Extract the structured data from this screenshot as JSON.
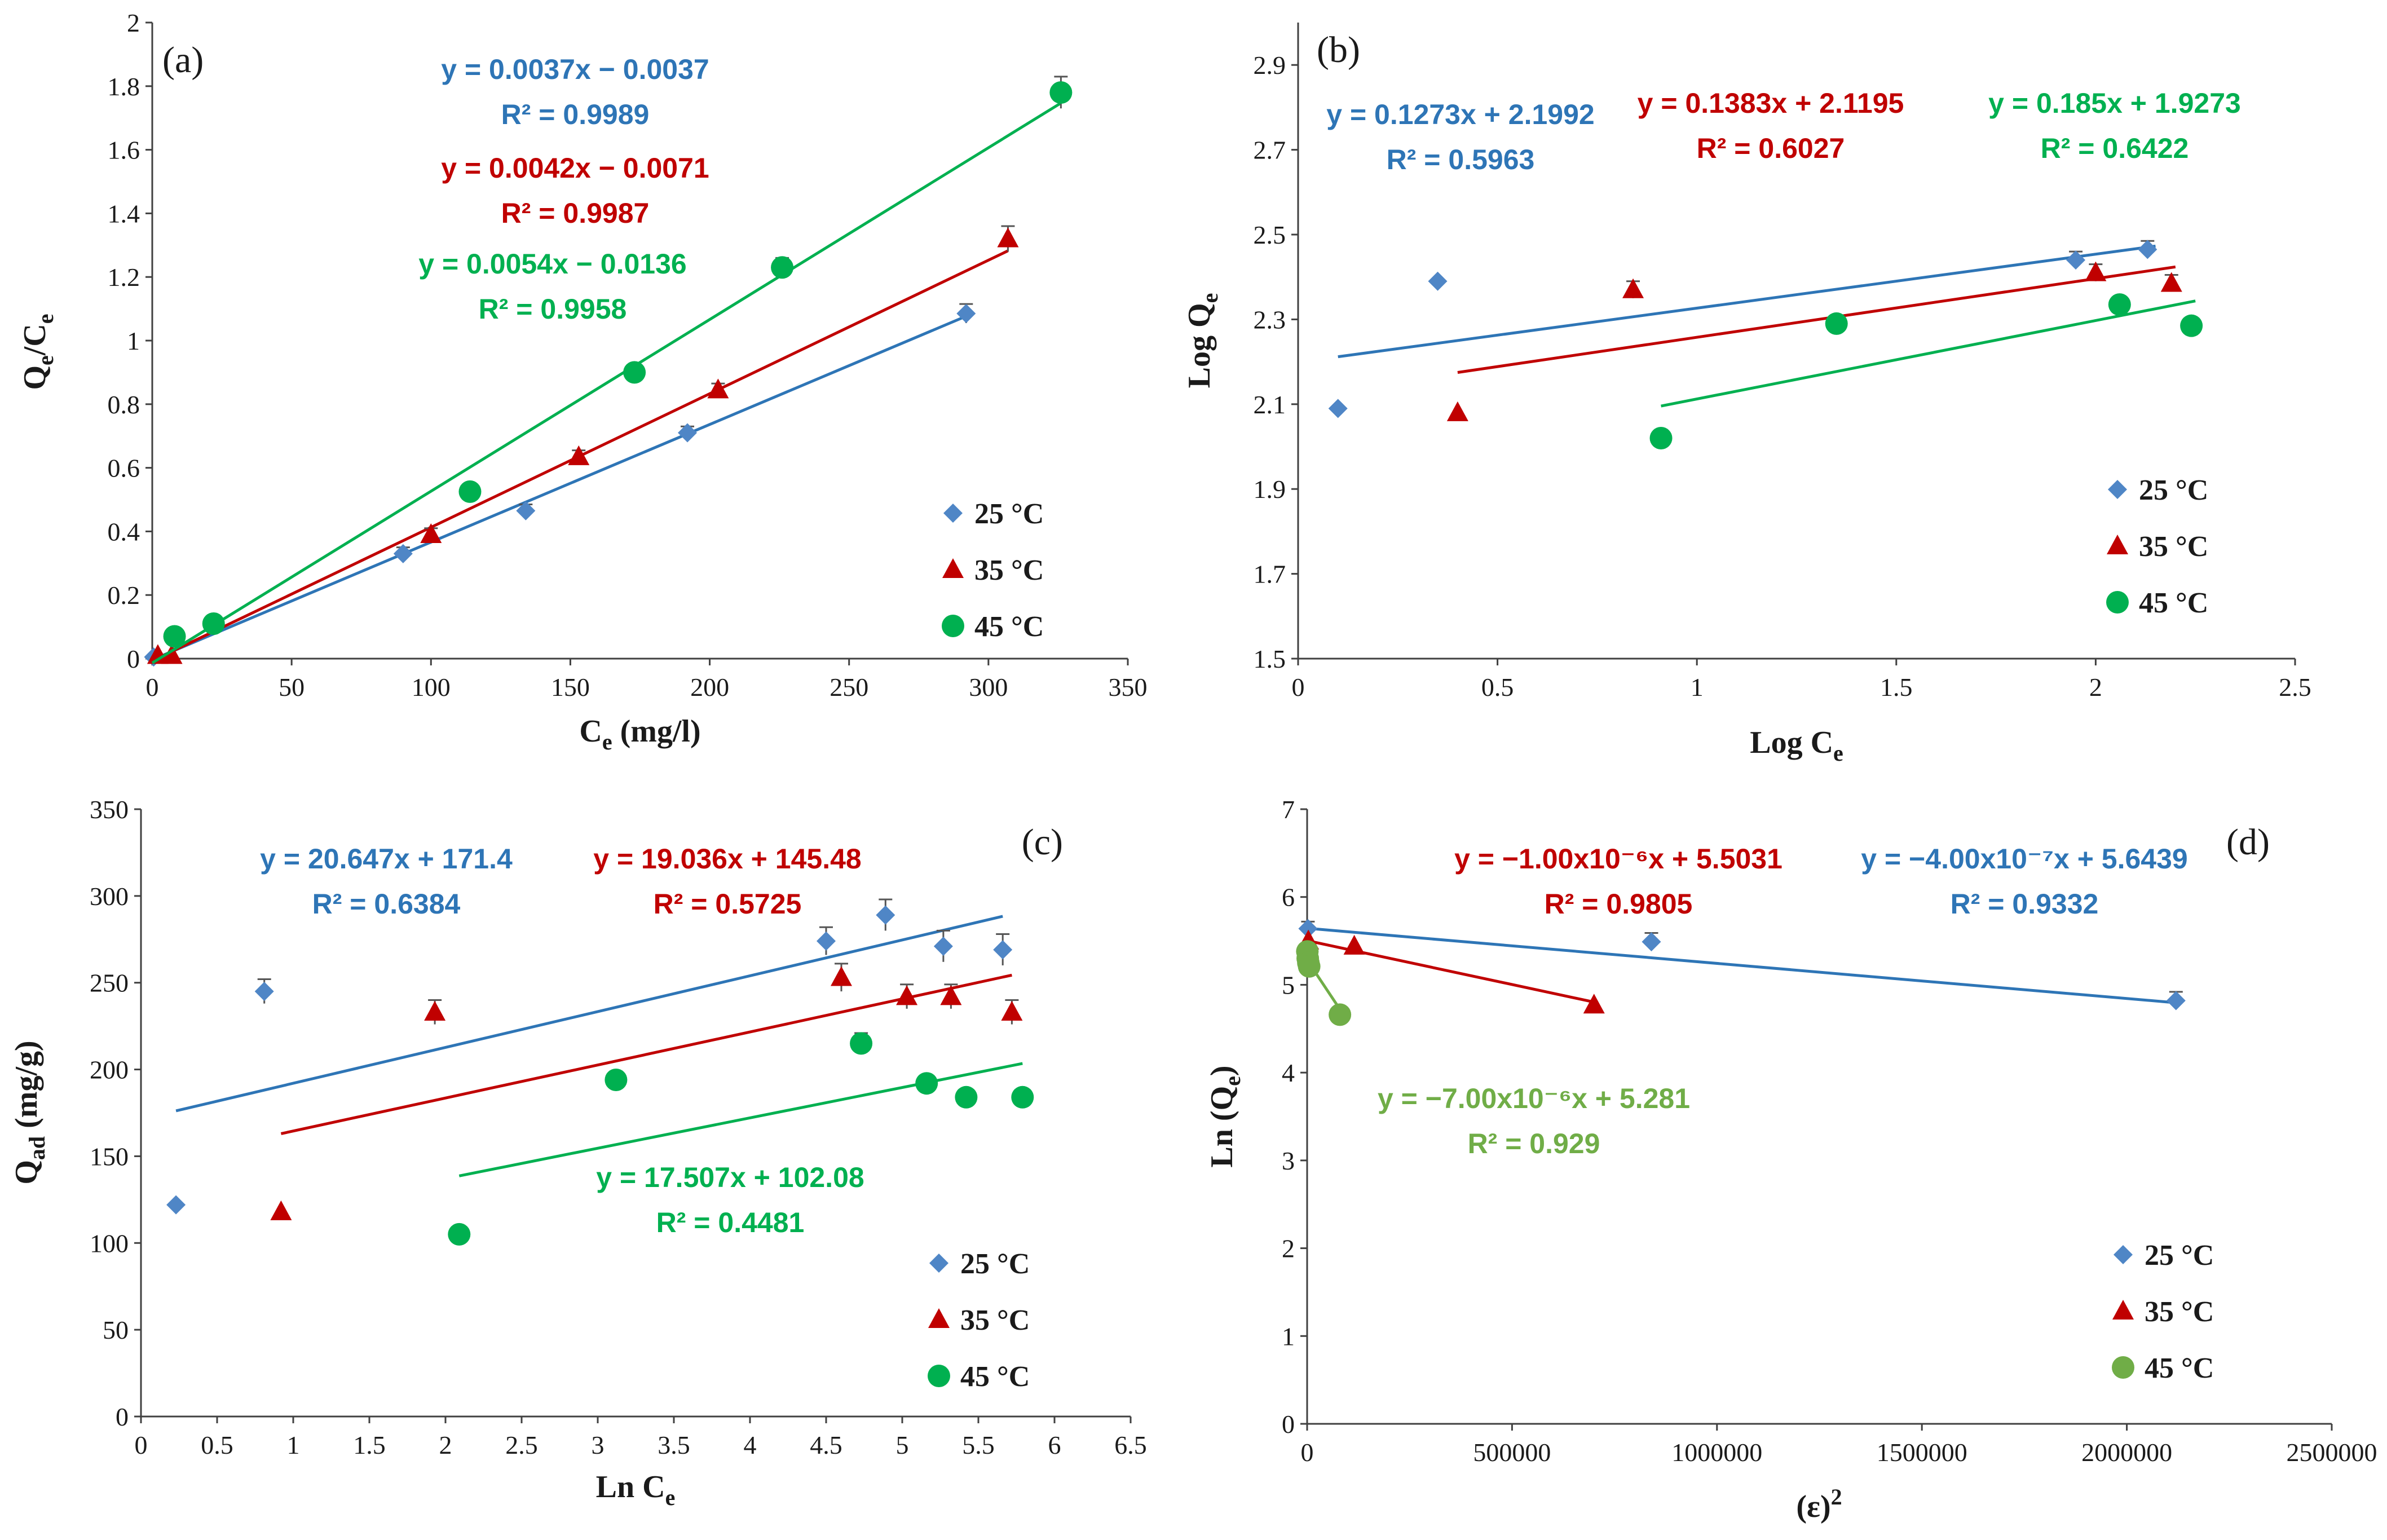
{
  "colors": {
    "c25": "#4F86C6",
    "c35": "#C00000",
    "c45": "#00B050",
    "c45d": "#70AD47",
    "line25": "#2E75B6",
    "axis": "#404040",
    "text": "#1a1a1a"
  },
  "legend_labels": [
    "25 °C",
    "35 °C",
    "45 °C"
  ],
  "chart_data": [
    {
      "id": "a",
      "type": "scatter",
      "panel_label": "(a)",
      "xlabel": "C",
      "xlabel_sub": "e",
      "xlabel_unit": " (mg/l)",
      "ylabel": "Q",
      "ylabel_sub1": "e",
      "ylabel_mid": "/C",
      "ylabel_sub2": "e",
      "xlim": [
        0,
        350
      ],
      "ylim": [
        0,
        2
      ],
      "xticks": [
        0,
        50,
        100,
        150,
        200,
        250,
        300,
        350
      ],
      "yticks": [
        0,
        0.2,
        0.4,
        0.6,
        0.8,
        1,
        1.2,
        1.4,
        1.6,
        1.8,
        2
      ],
      "series": [
        {
          "name": "25 °C",
          "marker": "diamond",
          "x": [
            0.5,
            90,
            134,
            192,
            292
          ],
          "y": [
            0.005,
            0.33,
            0.465,
            0.71,
            1.085
          ],
          "err": [
            0,
            0.02,
            0.02,
            0.02,
            0.03
          ],
          "fit_x": [
            0,
            292
          ]
        },
        {
          "name": "35 °C",
          "marker": "triangle",
          "x": [
            2,
            7,
            100,
            153,
            203,
            307
          ],
          "y": [
            0.01,
            0.01,
            0.39,
            0.635,
            0.845,
            1.32
          ],
          "err": [
            0,
            0,
            0.02,
            0.02,
            0.02,
            0.04
          ],
          "fit_x": [
            0,
            307
          ]
        },
        {
          "name": "45 °C",
          "marker": "circle",
          "x": [
            8,
            22,
            114,
            173,
            226,
            326
          ],
          "y": [
            0.07,
            0.11,
            0.525,
            0.9,
            1.23,
            1.78
          ],
          "err": [
            0,
            0,
            0,
            0,
            0.03,
            0.05
          ],
          "fit_x": [
            0,
            326
          ]
        }
      ],
      "fits": [
        {
          "slope": 0.0037,
          "intercept": -0.0037,
          "equation": "y = 0.0037x − 0.0037",
          "r2": "R² = 0.9989"
        },
        {
          "slope": 0.0042,
          "intercept": -0.0071,
          "equation": "y = 0.0042x − 0.0071",
          "r2": "R² = 0.9987"
        },
        {
          "slope": 0.0054,
          "intercept": -0.0136,
          "equation": "y = 0.0054x − 0.0136",
          "r2": "R² = 0.9958"
        }
      ]
    },
    {
      "id": "b",
      "type": "scatter",
      "panel_label": "(b)",
      "xlabel": "Log C",
      "xlabel_sub": "e",
      "xlabel_unit": "",
      "ylabel": "Log Q",
      "ylabel_sub1": "e",
      "ylabel_mid": "",
      "ylabel_sub2": "",
      "xlim": [
        0,
        2.5
      ],
      "ylim": [
        1.5,
        3.0
      ],
      "xticks": [
        0,
        0.5,
        1,
        1.5,
        2,
        2.5
      ],
      "yticks": [
        1.5,
        1.7,
        1.9,
        2.1,
        2.3,
        2.5,
        2.7,
        2.9
      ],
      "series": [
        {
          "name": "25 °C",
          "marker": "diamond",
          "x": [
            0.1,
            0.35,
            1.95,
            2.13
          ],
          "y": [
            2.09,
            2.39,
            2.44,
            2.465
          ],
          "err": [
            0,
            0,
            0.02,
            0.02
          ],
          "fit_x": [
            0.1,
            2.15
          ]
        },
        {
          "name": "35 °C",
          "marker": "triangle",
          "x": [
            0.4,
            0.84,
            2.0,
            2.19
          ],
          "y": [
            2.08,
            2.37,
            2.41,
            2.385
          ],
          "err": [
            0,
            0.02,
            0.02,
            0.02
          ],
          "fit_x": [
            0.4,
            2.2
          ]
        },
        {
          "name": "45 °C",
          "marker": "circle",
          "x": [
            0.91,
            1.35,
            2.06,
            2.24
          ],
          "y": [
            2.02,
            2.29,
            2.335,
            2.285
          ],
          "err": [
            0,
            0,
            0,
            0
          ],
          "fit_x": [
            0.91,
            2.25
          ]
        }
      ],
      "fits": [
        {
          "slope": 0.1273,
          "intercept": 2.1992,
          "equation": "y = 0.1273x + 2.1992",
          "r2": "R² = 0.5963"
        },
        {
          "slope": 0.1383,
          "intercept": 2.1195,
          "equation": "y = 0.1383x + 2.1195",
          "r2": "R² = 0.6027"
        },
        {
          "slope": 0.185,
          "intercept": 1.9273,
          "equation": "y = 0.185x + 1.9273",
          "r2": "R² = 0.6422"
        }
      ]
    },
    {
      "id": "c",
      "type": "scatter",
      "panel_label": "(c)",
      "xlabel": "Ln C",
      "xlabel_sub": "e",
      "xlabel_unit": "",
      "ylabel": "Q",
      "ylabel_sub1": "ad",
      "ylabel_mid": " (mg/g)",
      "ylabel_sub2": "",
      "xlim": [
        0,
        6.5
      ],
      "ylim": [
        0,
        350
      ],
      "xticks": [
        0,
        0.5,
        1,
        1.5,
        2,
        2.5,
        3,
        3.5,
        4,
        4.5,
        5,
        5.5,
        6,
        6.5
      ],
      "yticks": [
        0,
        50,
        100,
        150,
        200,
        250,
        300,
        350
      ],
      "series": [
        {
          "name": "25 °C",
          "marker": "diamond",
          "x": [
            0.23,
            0.81,
            4.5,
            4.89,
            5.27,
            5.66
          ],
          "y": [
            122,
            245,
            274,
            289,
            271,
            269
          ],
          "err": [
            0,
            7,
            8,
            9,
            9,
            9
          ],
          "fit_x": [
            0.23,
            5.66
          ]
        },
        {
          "name": "35 °C",
          "marker": "triangle",
          "x": [
            0.92,
            1.93,
            4.6,
            5.03,
            5.32,
            5.72
          ],
          "y": [
            118,
            233,
            253,
            242,
            242,
            233
          ],
          "err": [
            0,
            7,
            8,
            7,
            7,
            7
          ],
          "fit_x": [
            0.92,
            5.72
          ]
        },
        {
          "name": "45 °C",
          "marker": "circle",
          "x": [
            2.09,
            3.12,
            4.73,
            5.16,
            5.42,
            5.79
          ],
          "y": [
            105,
            194,
            215,
            192,
            184,
            184
          ],
          "err": [
            0,
            0,
            6,
            0,
            0,
            0
          ],
          "fit_x": [
            2.09,
            5.79
          ]
        }
      ],
      "fits": [
        {
          "slope": 20.647,
          "intercept": 171.4,
          "equation": "y = 20.647x + 171.4",
          "r2": "R² = 0.6384"
        },
        {
          "slope": 19.036,
          "intercept": 145.48,
          "equation": "y = 19.036x + 145.48",
          "r2": "R² = 0.5725"
        },
        {
          "slope": 17.507,
          "intercept": 102.08,
          "equation": "y = 17.507x + 102.08",
          "r2": "R² = 0.4481"
        }
      ]
    },
    {
      "id": "d",
      "type": "scatter",
      "panel_label": "(d)",
      "xlabel": "(ε)",
      "xlabel_sub": "",
      "xlabel_sup": "2",
      "xlabel_unit": "",
      "ylabel": "Ln (Q",
      "ylabel_sub1": "e",
      "ylabel_mid": ")",
      "ylabel_sub2": "",
      "xlim": [
        0,
        2500000
      ],
      "ylim": [
        0,
        7
      ],
      "xticks": [
        0,
        500000,
        1000000,
        1500000,
        2000000,
        2500000
      ],
      "yticks": [
        0,
        1,
        2,
        3,
        4,
        5,
        6,
        7
      ],
      "series": [
        {
          "name": "25 °C",
          "marker": "diamond",
          "x": [
            2000,
            840000,
            2120000
          ],
          "y": [
            5.64,
            5.49,
            4.82
          ],
          "err": [
            0.08,
            0.1,
            0.1
          ],
          "fit_x": [
            0,
            2120000
          ]
        },
        {
          "name": "35 °C",
          "marker": "triangle",
          "x": [
            3000,
            115000,
            700000
          ],
          "y": [
            5.5,
            5.44,
            4.77
          ],
          "err": [
            0,
            0,
            0
          ],
          "fit_x": [
            0,
            700000
          ]
        },
        {
          "name": "45 °C",
          "marker": "circle",
          "x": [
            500,
            1500,
            3000,
            5000,
            80000
          ],
          "y": [
            5.38,
            5.3,
            5.25,
            5.21,
            4.66
          ],
          "err": [
            0,
            0,
            0,
            0,
            0
          ],
          "fit_x": [
            0,
            80000
          ]
        }
      ],
      "fits": [
        {
          "slope": -4e-07,
          "intercept": 5.6439,
          "equation": "y = −4.00x10⁻⁷x + 5.6439",
          "r2": "R² = 0.9332"
        },
        {
          "slope": -1e-06,
          "intercept": 5.5031,
          "equation": "y = −1.00x10⁻⁶x + 5.5031",
          "r2": "R² = 0.9805"
        },
        {
          "slope": -7e-06,
          "intercept": 5.281,
          "equation": "y = −7.00x10⁻⁶x + 5.281",
          "r2": "R² = 0.929"
        }
      ]
    }
  ]
}
